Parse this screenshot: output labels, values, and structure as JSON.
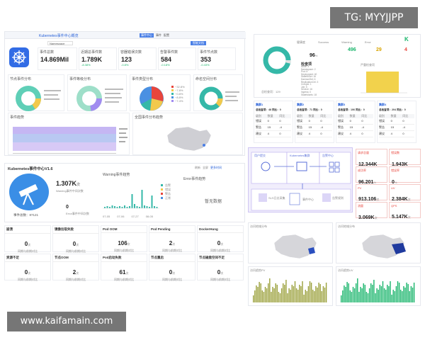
{
  "watermarks": {
    "top_right": "TG: MYYJJPP",
    "bottom_left": "www.kaifamain.com"
  },
  "top_left": {
    "title": "Kubernetes事件中心概览",
    "env_label": "Namespace",
    "tab_buttons": [
      "事件中心",
      "事件",
      "配置"
    ],
    "link": "智能文档",
    "kpis": [
      {
        "label": "事件总数",
        "value": "14.869Mil"
      },
      {
        "label": "近期总事件数",
        "value": "1.789K",
        "delta": "-8.38%"
      },
      {
        "label": "容器错误次数",
        "value": "123",
        "delta": "-0.8%"
      },
      {
        "label": "告警事件数",
        "value": "584",
        "delta": "-0.18%"
      },
      {
        "label": "事件节点数",
        "value": "353",
        "delta": "-0.43%"
      }
    ],
    "donut_titles": [
      "节点事件分布",
      "事件等级分布",
      "事件类型分布",
      "命名空间分布"
    ],
    "trend_title": "事件趋势",
    "map_title": "全国事件分布趋势",
    "pie_legend": [
      "~32.8%",
      "~7.8%",
      "~0.8%",
      "~8.8%",
      "~7.4%"
    ]
  },
  "mid_left": {
    "title": "Kubernetes事件中心V1.6",
    "actions": [
      "刷新",
      "全屏",
      "更多时间"
    ],
    "count": "1.307K",
    "count_suffix": "次",
    "count_label": "Warning事件中间次数",
    "zero_value": "0",
    "zero_label": "Error事件中间次数",
    "total_label": "事件总数：87121",
    "chart_title": "Warning事件趋势",
    "chart_x": [
      "07-05",
      "07-06",
      "07-27",
      "08-05"
    ],
    "legend": [
      "告警",
      "错误",
      "警告",
      "正常"
    ],
    "error_title": "Error事件趋势",
    "empty": "暂无数据"
  },
  "grid_cards": [
    {
      "title": "崩溃",
      "value": "0",
      "unit": "次",
      "sub": "同期与前期对比"
    },
    {
      "title": "镜像拉取失败",
      "value": "0",
      "unit": "次",
      "sub": "同期与前期对比"
    },
    {
      "title": "Pod OOM",
      "value": "106",
      "unit": "次",
      "sub": "同期与前期对比"
    },
    {
      "title": "Pod Pending",
      "value": "2",
      "unit": "次",
      "sub": "同期与前期对比"
    },
    {
      "title": "DockerHung",
      "value": "0",
      "unit": "次",
      "sub": "同期与前期对比"
    },
    {
      "title": "资源不足",
      "value": "0",
      "unit": "次",
      "sub": "同期与前期对比"
    },
    {
      "title": "节点OOM",
      "value": "2",
      "unit": "次",
      "sub": "同期与前期对比"
    },
    {
      "title": "Pod启动失败",
      "value": "61",
      "unit": "次",
      "sub": "同期与前期对比"
    },
    {
      "title": "节点重启",
      "value": "0",
      "unit": "次",
      "sub": "同期与前期对比"
    },
    {
      "title": "节点磁盘空间不足",
      "value": "0",
      "unit": "次",
      "sub": "同期与前期对比"
    }
  ],
  "right_top": {
    "tabs": [
      "健康度",
      "Success",
      "Warning",
      "Error"
    ],
    "health": "96",
    "health_unit": "%",
    "success": "496",
    "warning": "29",
    "error": "4",
    "stats_title": "检查项",
    "list": [
      "Node: 3",
      "Namespace: 2",
      "Pod: 8",
      "Deployment: 40",
      "StatefulSet: 16",
      "DaemonSet: 6",
      "ReplicationCtrl: 3",
      "Cronjob: 1",
      "Job: 5",
      "Service: 16",
      "Ingress: 0",
      "Statefulsets: 18"
    ],
    "score_label": "总检查项：129",
    "bar_title": "严重检查项"
  },
  "right_tables": {
    "headers": [
      "集群1",
      "集群2",
      "集群3",
      "集群4"
    ],
    "totals": [
      "总检查项：48 同比：0",
      "总检查项：71 同比：0",
      "总检查项：106 同比：0",
      "总检查项：204 同比：0"
    ],
    "cols": [
      "级别",
      "数量",
      "同比"
    ],
    "rows": [
      [
        "错误",
        "0",
        "0"
      ],
      [
        "警告",
        "15",
        "-4"
      ],
      [
        "建议",
        "4",
        "0"
      ]
    ]
  },
  "right_flow": {
    "left_label": "用户提交",
    "mid_label": "Kubernetes集群",
    "right_label": "告警中心",
    "bottom_labels": [
      "SLS日志采集",
      "事件中心",
      "告警规则"
    ]
  },
  "right_metrics": [
    {
      "label": "请求总量",
      "value": "12.344K"
    },
    {
      "label": "错误数",
      "value": "1.943K"
    },
    {
      "label": "成功率",
      "value": "96.201",
      "unit": "%"
    },
    {
      "label": "错误率",
      "value": "0",
      "unit": "%"
    },
    {
      "label": "PV",
      "value": "913.106",
      "unit": "次"
    },
    {
      "label": "UV",
      "value": "2.384K",
      "unit": "次"
    },
    {
      "label": "流量",
      "value": "3.069K",
      "unit": "次"
    },
    {
      "label": "QPS",
      "value": "5.147K",
      "unit": "次"
    }
  ],
  "right_maps": {
    "titles": [
      "访问地域分布",
      "访问地域分布"
    ]
  },
  "right_bottom": {
    "titles": [
      "访问趋势PV",
      "访问趋势UV"
    ]
  },
  "colors": {
    "teal": "#35b8a8",
    "blue": "#3b82f6",
    "purple": "#a18cf0",
    "yellow": "#f2c94c",
    "green": "#19b56b",
    "red": "#e8453c",
    "olive": "#9aa03a"
  }
}
